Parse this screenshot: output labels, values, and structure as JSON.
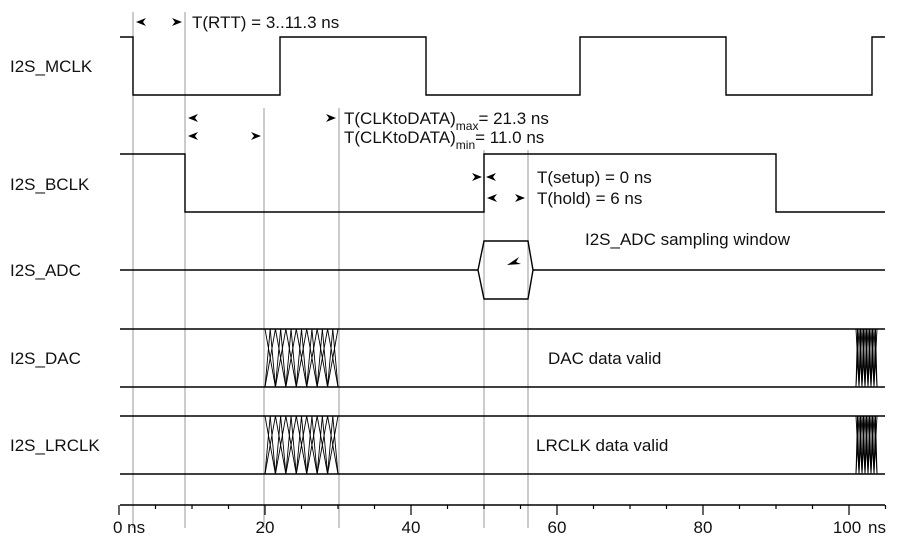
{
  "signals": [
    {
      "id": "mclk",
      "label": "I2S_MCLK"
    },
    {
      "id": "bclk",
      "label": "I2S_BCLK"
    },
    {
      "id": "adc",
      "label": "I2S_ADC"
    },
    {
      "id": "dac",
      "label": "I2S_DAC"
    },
    {
      "id": "lrclk",
      "label": "I2S_LRCLK"
    }
  ],
  "timing": {
    "rtt": "T(RTT)  = 3..11.3 ns",
    "clk_to_data_max": {
      "main": "T(CLKtoDATA)",
      "sub": "max",
      "value": "= 21.3 ns"
    },
    "clk_to_data_min": {
      "main": "T(CLKtoDATA)",
      "sub": "min",
      "value": "= 11.0 ns"
    },
    "setup": "T(setup) = 0 ns",
    "hold": "T(hold) = 6 ns"
  },
  "annotations": {
    "adc_window": "I2S_ADC sampling window",
    "dac_valid": "DAC data valid",
    "lrclk_valid": "LRCLK data valid"
  },
  "time_axis": {
    "ticks": [
      {
        "value": 0,
        "label": "0 ns"
      },
      {
        "value": 20,
        "label": "20"
      },
      {
        "value": 40,
        "label": "40"
      },
      {
        "value": 60,
        "label": "60"
      },
      {
        "value": 80,
        "label": "80"
      },
      {
        "value": 100,
        "label": "100"
      }
    ],
    "unit_label": "ns",
    "range": [
      0,
      107.5
    ],
    "minor_step": 5
  },
  "events_ns": {
    "mclk_edge": 2,
    "bclk_fall": 8.5,
    "data_max": 30,
    "data_min": 20,
    "bclk_rise": 50,
    "hold_end": 56
  },
  "colors": {
    "trace": "#000000",
    "guide": "#aaaaaa"
  }
}
